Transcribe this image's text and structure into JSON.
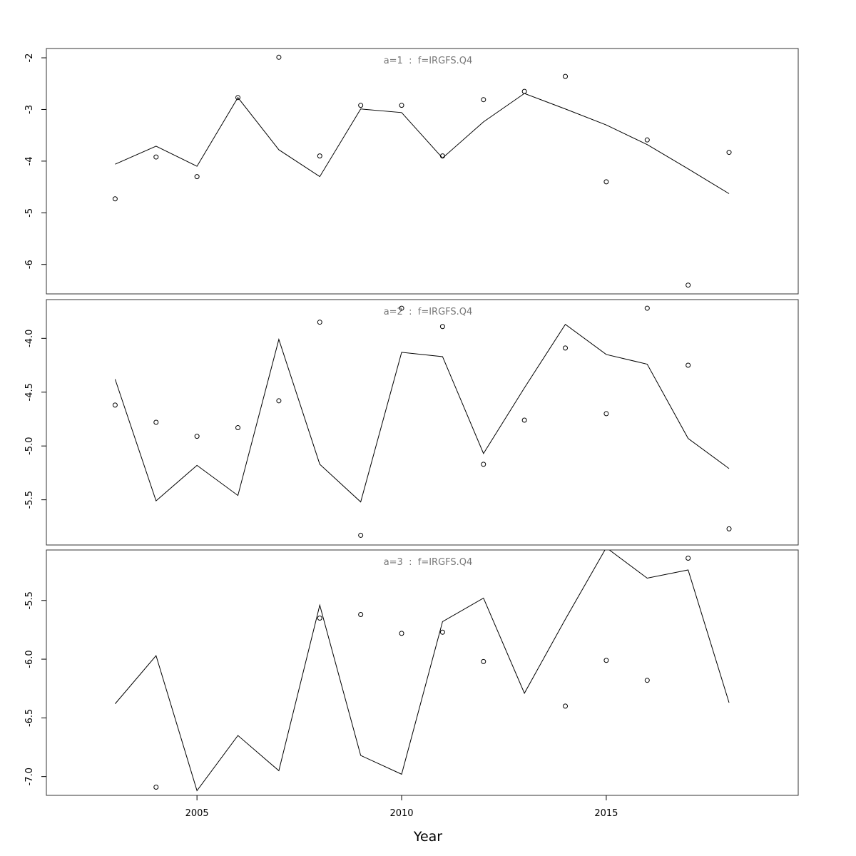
{
  "chart_data": [
    {
      "type": "line",
      "title": "a=1  :  f=IRGFS.Q4",
      "x": [
        2003,
        2004,
        2005,
        2006,
        2007,
        2008,
        2009,
        2010,
        2011,
        2012,
        2013,
        2014,
        2015,
        2016,
        2017,
        2018
      ],
      "series": [
        {
          "style": "line",
          "color": "#000000",
          "values": [
            -4.06,
            -3.71,
            -4.1,
            -2.77,
            -3.78,
            -4.3,
            -2.99,
            -3.06,
            -3.94,
            -3.24,
            -2.69,
            -2.99,
            -3.3,
            -3.68,
            -4.15,
            -4.63
          ]
        },
        {
          "style": "points",
          "color": "#000000",
          "values": [
            -4.73,
            -3.92,
            -4.3,
            -2.77,
            -1.99,
            -3.9,
            -2.92,
            -2.92,
            -3.9,
            -2.81,
            -2.65,
            -2.36,
            -4.4,
            -3.59,
            -6.4,
            -3.83
          ]
        }
      ],
      "xlim": [
        2001.32,
        2019.69
      ],
      "ylim": [
        -6.57,
        -1.82
      ],
      "yticks": [
        -2,
        -3,
        -4,
        -5,
        -6
      ]
    },
    {
      "type": "line",
      "title": "a=2  :  f=IRGFS.Q4",
      "x": [
        2003,
        2004,
        2005,
        2006,
        2007,
        2008,
        2009,
        2010,
        2011,
        2012,
        2013,
        2014,
        2015,
        2016,
        2017,
        2018
      ],
      "series": [
        {
          "style": "line",
          "color": "#000000",
          "values": [
            -4.38,
            -5.51,
            -5.18,
            -5.46,
            -4.01,
            -5.17,
            -5.52,
            -4.13,
            -4.17,
            -5.07,
            -4.46,
            -3.87,
            -4.15,
            -4.24,
            -4.93,
            -5.21
          ]
        },
        {
          "style": "points",
          "color": "#000000",
          "values": [
            -4.62,
            -4.78,
            -4.91,
            -4.83,
            -4.58,
            -3.85,
            -5.83,
            -3.72,
            -3.89,
            -5.17,
            -4.76,
            -4.09,
            -4.7,
            -3.72,
            -4.25,
            -5.77
          ]
        }
      ],
      "xlim": [
        2001.32,
        2019.69
      ],
      "ylim": [
        -5.92,
        -3.64
      ],
      "yticks": [
        {
          "value": -4,
          "label": "-4.0"
        },
        -4.5,
        {
          "value": -5,
          "label": "-5.0"
        },
        -5.5
      ]
    },
    {
      "type": "line",
      "title": "a=3  :  f=IRGFS.Q4",
      "x": [
        2003,
        2004,
        2005,
        2006,
        2007,
        2008,
        2009,
        2010,
        2011,
        2012,
        2013,
        2014,
        2015,
        2016,
        2017,
        2018
      ],
      "series": [
        {
          "style": "line",
          "color": "#000000",
          "values": [
            -6.38,
            -5.97,
            -7.12,
            -6.65,
            -6.95,
            -5.54,
            -6.82,
            -6.98,
            -5.68,
            -5.48,
            -6.29,
            -5.66,
            -5.05,
            -5.31,
            -5.24,
            -6.37
          ]
        },
        {
          "style": "points",
          "color": "#000000",
          "values": [
            null,
            -7.09,
            null,
            null,
            null,
            -5.65,
            -5.62,
            -5.78,
            -5.77,
            -6.02,
            null,
            -6.4,
            -6.01,
            -6.18,
            -5.14,
            null
          ]
        }
      ],
      "xlim": [
        2001.32,
        2019.69
      ],
      "ylim": [
        -7.16,
        -5.07
      ],
      "yticks": [
        -5.5,
        {
          "value": -6,
          "label": "-6.0"
        },
        -6.5,
        {
          "value": -7,
          "label": "-7.0"
        }
      ],
      "xticks": [
        2005,
        2010,
        2015
      ],
      "xlabel": "Year"
    }
  ]
}
